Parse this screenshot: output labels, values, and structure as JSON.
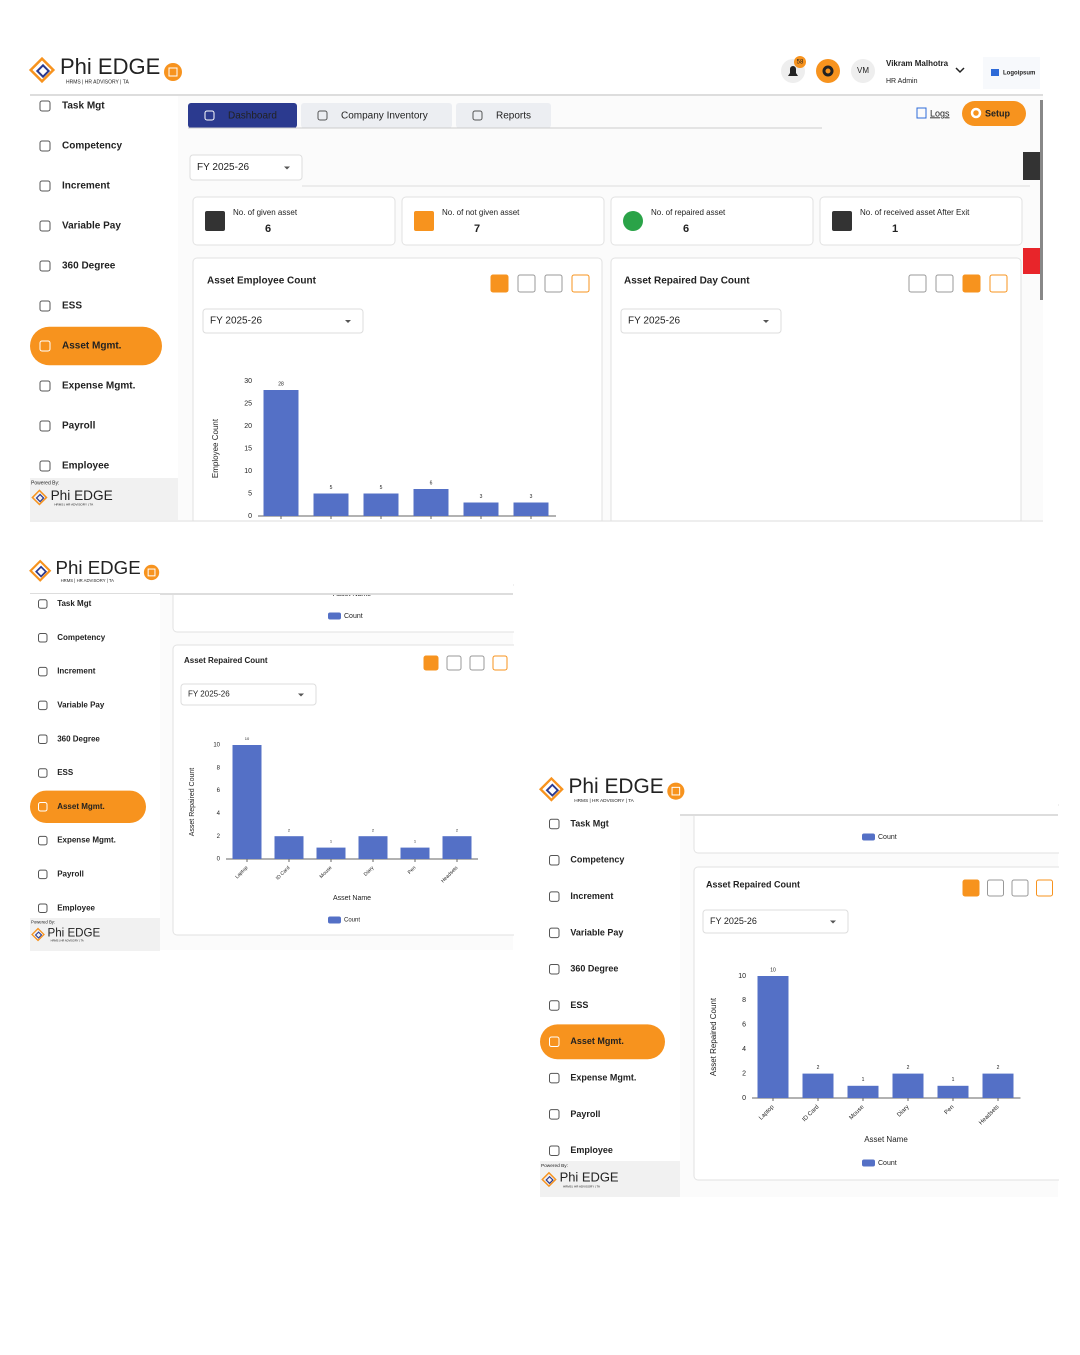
{
  "brand": {
    "name": "Phi EDGE",
    "tagline": "HRMS | HR ADVISORY | TA",
    "powered_by": "Powered By:"
  },
  "sidebar": [
    "Task Mgt",
    "Competency",
    "Increment",
    "Variable Pay",
    "360 Degree",
    "ESS",
    "Asset Mgmt.",
    "Expense Mgmt.",
    "Payroll",
    "Employee"
  ],
  "sidebar_active": 6,
  "header": {
    "notifications": "58",
    "user_initials": "VM",
    "user_name": "Vikram Malhotra",
    "user_role": "HR Admin",
    "client_logo": "Logoipsum"
  },
  "tabs": [
    "Dashboard",
    "Company Inventory",
    "Reports"
  ],
  "logs": "Logs",
  "setup": "Setup",
  "year_filter": "FY 2025-26",
  "stats": [
    {
      "label": "No. of given asset",
      "value": 6
    },
    {
      "label": "No. of not given asset",
      "value": 7
    },
    {
      "label": "No. of repaired asset",
      "value": 6
    },
    {
      "label": "No. of received asset After Exit",
      "value": 1
    }
  ],
  "charts": [
    {
      "type": "bar",
      "title": "Asset Employee Count",
      "y_label": "Employee Count",
      "x_label": "Asset Name",
      "legend": "Count",
      "categories": [
        null,
        null,
        null,
        null,
        null,
        null
      ],
      "values": [
        28,
        5,
        5,
        6,
        3,
        3
      ],
      "ylim": [
        0,
        30
      ],
      "yticks": [
        0,
        5,
        10,
        15,
        20,
        25,
        30
      ],
      "color": "#5470c6"
    },
    {
      "type": "bar",
      "title": "Asset Repaired Day Count"
    },
    {
      "type": "bar",
      "title": "Asset Repaired Count",
      "y_label": "Asset Repaired Count",
      "x_label": "Asset Name",
      "legend": "Count",
      "categories": [
        "Laptop",
        "ID Card",
        "Mouse",
        "Diary",
        "Pen",
        "Headsets"
      ],
      "values": [
        10,
        2,
        1,
        2,
        1,
        2
      ],
      "ylim": [
        0,
        10
      ],
      "yticks": [
        0,
        2,
        4,
        6,
        8,
        10
      ],
      "color": "#5470c6"
    }
  ]
}
